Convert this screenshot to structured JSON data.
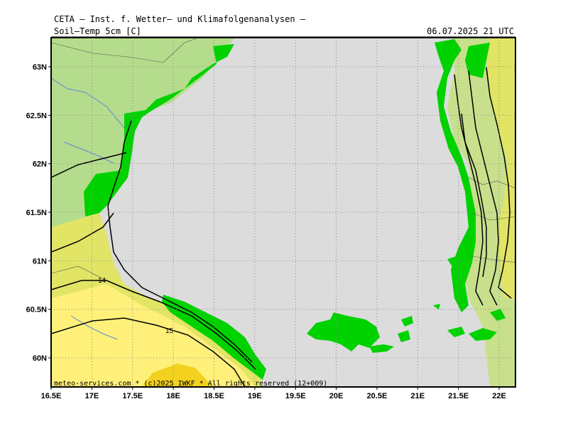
{
  "header": {
    "institute": "CETA — Inst. f. Wetter— und Klimafolgenanalysen —",
    "parameter": "Soil—Temp 5cm [C]",
    "datetime": "06.07.2025 21 UTC"
  },
  "footer": "meteo-services.com * (c)2025 IWKF * All rights reserved (12+009)",
  "map": {
    "lon_range": [
      16.5,
      22.2
    ],
    "lat_range": [
      59.7,
      63.3
    ],
    "lon_ticks": [
      "16.5E",
      "17E",
      "17.5E",
      "18E",
      "18.5E",
      "19E",
      "19.5E",
      "20E",
      "20.5E",
      "21E",
      "21.5E",
      "22E"
    ],
    "lat_ticks": [
      "60N",
      "60.5N",
      "61N",
      "61.5N",
      "62N",
      "62.5N",
      "63N"
    ],
    "contour_labels": [
      "14",
      "15"
    ],
    "colors": {
      "sea": "#dcdcdc",
      "land_cool": "#b5dc8c",
      "land_mid": "#c8e08c",
      "land_warm": "#e2e466",
      "land_yellow": "#fff07a",
      "land_hot": "#f2d21e",
      "coast_green": "#00d200",
      "contour": "#000000",
      "river": "#5a8ad8"
    }
  }
}
